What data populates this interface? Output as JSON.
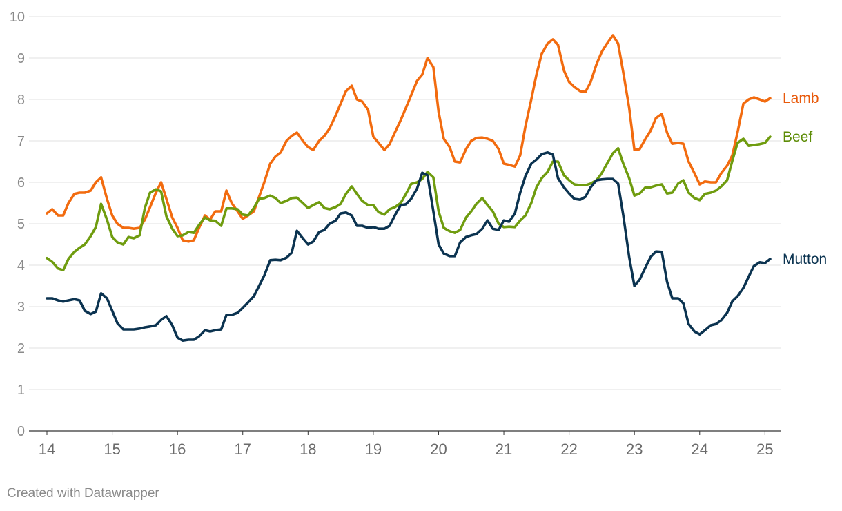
{
  "footer": "Created with Datawrapper",
  "chart_data": {
    "type": "line",
    "title": "",
    "xlabel": "",
    "ylabel": "",
    "xlim": [
      14,
      25.25
    ],
    "ylim": [
      0,
      10
    ],
    "grid": true,
    "x_ticks": [
      14,
      15,
      16,
      17,
      18,
      19,
      20,
      21,
      22,
      23,
      24,
      25
    ],
    "x_tick_labels": [
      "14",
      "15",
      "16",
      "17",
      "18",
      "19",
      "20",
      "21",
      "22",
      "23",
      "24",
      "25"
    ],
    "y_ticks": [
      0,
      1,
      2,
      3,
      4,
      5,
      6,
      7,
      8,
      9,
      10
    ],
    "y_tick_labels": [
      "0",
      "1",
      "2",
      "3",
      "4",
      "5",
      "6",
      "7",
      "8",
      "9",
      "10"
    ],
    "series": [
      {
        "name": "Lamb",
        "color": "#f26b0f",
        "label_color": "#e85a0c",
        "x": [
          14.0,
          14.08,
          14.17,
          14.25,
          14.33,
          14.42,
          14.5,
          14.58,
          14.67,
          14.75,
          14.83,
          14.92,
          15.0,
          15.08,
          15.17,
          15.25,
          15.33,
          15.42,
          15.5,
          15.58,
          15.67,
          15.75,
          15.83,
          15.92,
          16.0,
          16.08,
          16.17,
          16.25,
          16.33,
          16.42,
          16.5,
          16.58,
          16.67,
          16.75,
          16.83,
          16.92,
          17.0,
          17.08,
          17.17,
          17.25,
          17.33,
          17.42,
          17.5,
          17.58,
          17.67,
          17.75,
          17.83,
          17.92,
          18.0,
          18.08,
          18.17,
          18.25,
          18.33,
          18.42,
          18.5,
          18.58,
          18.67,
          18.75,
          18.83,
          18.92,
          19.0,
          19.08,
          19.17,
          19.25,
          19.33,
          19.42,
          19.5,
          19.58,
          19.67,
          19.75,
          19.83,
          19.92,
          20.0,
          20.08,
          20.17,
          20.25,
          20.33,
          20.42,
          20.5,
          20.58,
          20.67,
          20.75,
          20.83,
          20.92,
          21.0,
          21.08,
          21.17,
          21.25,
          21.33,
          21.42,
          21.5,
          21.58,
          21.67,
          21.75,
          21.83,
          21.92,
          22.0,
          22.08,
          22.17,
          22.25,
          22.33,
          22.42,
          22.5,
          22.58,
          22.67,
          22.75,
          22.83,
          22.92,
          23.0,
          23.08,
          23.17,
          23.25,
          23.33,
          23.42,
          23.5,
          23.58,
          23.67,
          23.75,
          23.83,
          23.92,
          24.0,
          24.08,
          24.17,
          24.25,
          24.33,
          24.42,
          24.5,
          24.58,
          24.67,
          24.75,
          24.83,
          24.92,
          25.0,
          25.08
        ],
        "values": [
          5.25,
          5.35,
          5.2,
          5.2,
          5.5,
          5.72,
          5.75,
          5.75,
          5.8,
          6.0,
          6.12,
          5.6,
          5.2,
          5.0,
          4.9,
          4.9,
          4.88,
          4.9,
          5.1,
          5.4,
          5.75,
          6.0,
          5.6,
          5.15,
          4.9,
          4.6,
          4.57,
          4.6,
          4.9,
          5.2,
          5.1,
          5.3,
          5.3,
          5.8,
          5.5,
          5.3,
          5.12,
          5.2,
          5.3,
          5.65,
          6.0,
          6.45,
          6.62,
          6.72,
          7.0,
          7.12,
          7.2,
          7.0,
          6.85,
          6.78,
          7.0,
          7.12,
          7.3,
          7.6,
          7.9,
          8.2,
          8.33,
          8.0,
          7.95,
          7.75,
          7.1,
          6.95,
          6.78,
          6.92,
          7.2,
          7.5,
          7.8,
          8.1,
          8.45,
          8.6,
          9.0,
          8.78,
          7.7,
          7.05,
          6.85,
          6.5,
          6.48,
          6.8,
          7.0,
          7.07,
          7.08,
          7.05,
          7.0,
          6.8,
          6.45,
          6.42,
          6.38,
          6.65,
          7.35,
          8.0,
          8.6,
          9.1,
          9.35,
          9.45,
          9.32,
          8.7,
          8.42,
          8.3,
          8.2,
          8.18,
          8.42,
          8.85,
          9.15,
          9.35,
          9.55,
          9.35,
          8.65,
          7.8,
          6.78,
          6.8,
          7.05,
          7.25,
          7.55,
          7.65,
          7.2,
          6.93,
          6.95,
          6.93,
          6.5,
          6.22,
          5.95,
          6.02,
          6.0,
          6.0,
          6.22,
          6.4,
          6.65,
          7.2,
          7.9,
          8.0,
          8.05,
          8.0,
          7.95,
          8.03
        ]
      },
      {
        "name": "Beef",
        "color": "#6f9c0f",
        "label_color": "#5d8c06",
        "x": [
          14.0,
          14.08,
          14.17,
          14.25,
          14.33,
          14.42,
          14.5,
          14.58,
          14.67,
          14.75,
          14.83,
          14.92,
          15.0,
          15.08,
          15.17,
          15.25,
          15.33,
          15.42,
          15.5,
          15.58,
          15.67,
          15.75,
          15.83,
          15.92,
          16.0,
          16.08,
          16.17,
          16.25,
          16.33,
          16.42,
          16.5,
          16.58,
          16.67,
          16.75,
          16.83,
          16.92,
          17.0,
          17.08,
          17.17,
          17.25,
          17.33,
          17.42,
          17.5,
          17.58,
          17.67,
          17.75,
          17.83,
          17.92,
          18.0,
          18.08,
          18.17,
          18.25,
          18.33,
          18.42,
          18.5,
          18.58,
          18.67,
          18.75,
          18.83,
          18.92,
          19.0,
          19.08,
          19.17,
          19.25,
          19.33,
          19.42,
          19.5,
          19.58,
          19.67,
          19.75,
          19.83,
          19.92,
          20.0,
          20.08,
          20.17,
          20.25,
          20.33,
          20.42,
          20.5,
          20.58,
          20.67,
          20.75,
          20.83,
          20.92,
          21.0,
          21.08,
          21.17,
          21.25,
          21.33,
          21.42,
          21.5,
          21.58,
          21.67,
          21.75,
          21.83,
          21.92,
          22.0,
          22.08,
          22.17,
          22.25,
          22.33,
          22.42,
          22.5,
          22.58,
          22.67,
          22.75,
          22.83,
          22.92,
          23.0,
          23.08,
          23.17,
          23.25,
          23.33,
          23.42,
          23.5,
          23.58,
          23.67,
          23.75,
          23.83,
          23.92,
          24.0,
          24.08,
          24.17,
          24.25,
          24.33,
          24.42,
          24.5,
          24.58,
          24.67,
          24.75,
          24.83,
          24.92,
          25.0,
          25.08
        ],
        "values": [
          4.17,
          4.08,
          3.92,
          3.88,
          4.15,
          4.32,
          4.42,
          4.5,
          4.7,
          4.92,
          5.48,
          5.1,
          4.68,
          4.55,
          4.5,
          4.68,
          4.65,
          4.72,
          5.38,
          5.75,
          5.83,
          5.78,
          5.18,
          4.88,
          4.7,
          4.72,
          4.8,
          4.78,
          4.97,
          5.15,
          5.08,
          5.07,
          4.95,
          5.37,
          5.37,
          5.35,
          5.22,
          5.2,
          5.38,
          5.6,
          5.62,
          5.68,
          5.62,
          5.5,
          5.55,
          5.62,
          5.63,
          5.5,
          5.38,
          5.45,
          5.52,
          5.38,
          5.35,
          5.4,
          5.48,
          5.72,
          5.9,
          5.72,
          5.55,
          5.45,
          5.45,
          5.28,
          5.22,
          5.35,
          5.4,
          5.5,
          5.72,
          5.96,
          6.0,
          6.08,
          6.25,
          6.12,
          5.3,
          4.9,
          4.82,
          4.78,
          4.85,
          5.15,
          5.3,
          5.48,
          5.62,
          5.45,
          5.3,
          5.0,
          4.92,
          4.93,
          4.92,
          5.08,
          5.2,
          5.5,
          5.88,
          6.1,
          6.25,
          6.5,
          6.5,
          6.17,
          6.05,
          5.95,
          5.93,
          5.93,
          5.97,
          6.05,
          6.22,
          6.45,
          6.7,
          6.82,
          6.45,
          6.1,
          5.68,
          5.73,
          5.88,
          5.88,
          5.92,
          5.95,
          5.73,
          5.75,
          5.97,
          6.05,
          5.75,
          5.62,
          5.57,
          5.72,
          5.75,
          5.8,
          5.9,
          6.05,
          6.52,
          6.95,
          7.05,
          6.88,
          6.9,
          6.92,
          6.95,
          7.1
        ]
      },
      {
        "name": "Mutton",
        "color": "#0b3350",
        "label_color": "#0b3350",
        "x": [
          14.0,
          14.08,
          14.17,
          14.25,
          14.33,
          14.42,
          14.5,
          14.58,
          14.67,
          14.75,
          14.83,
          14.92,
          15.0,
          15.08,
          15.17,
          15.25,
          15.33,
          15.42,
          15.5,
          15.58,
          15.67,
          15.75,
          15.83,
          15.92,
          16.0,
          16.08,
          16.17,
          16.25,
          16.33,
          16.42,
          16.5,
          16.58,
          16.67,
          16.75,
          16.83,
          16.92,
          17.0,
          17.08,
          17.17,
          17.25,
          17.33,
          17.42,
          17.5,
          17.58,
          17.67,
          17.75,
          17.83,
          17.92,
          18.0,
          18.08,
          18.17,
          18.25,
          18.33,
          18.42,
          18.5,
          18.58,
          18.67,
          18.75,
          18.83,
          18.92,
          19.0,
          19.08,
          19.17,
          19.25,
          19.33,
          19.42,
          19.5,
          19.58,
          19.67,
          19.75,
          19.83,
          19.92,
          20.0,
          20.08,
          20.17,
          20.25,
          20.33,
          20.42,
          20.5,
          20.58,
          20.67,
          20.75,
          20.83,
          20.92,
          21.0,
          21.08,
          21.17,
          21.25,
          21.33,
          21.42,
          21.5,
          21.58,
          21.67,
          21.75,
          21.83,
          21.92,
          22.0,
          22.08,
          22.17,
          22.25,
          22.33,
          22.42,
          22.5,
          22.58,
          22.67,
          22.75,
          22.83,
          22.92,
          23.0,
          23.08,
          23.17,
          23.25,
          23.33,
          23.42,
          23.5,
          23.58,
          23.67,
          23.75,
          23.83,
          23.92,
          24.0,
          24.08,
          24.17,
          24.25,
          24.33,
          24.42,
          24.5,
          24.58,
          24.67,
          24.75,
          24.83,
          24.92,
          25.0,
          25.08
        ],
        "values": [
          3.2,
          3.2,
          3.15,
          3.12,
          3.15,
          3.18,
          3.15,
          2.9,
          2.82,
          2.88,
          3.32,
          3.2,
          2.9,
          2.6,
          2.45,
          2.45,
          2.45,
          2.47,
          2.5,
          2.52,
          2.55,
          2.68,
          2.77,
          2.55,
          2.25,
          2.18,
          2.2,
          2.2,
          2.28,
          2.43,
          2.4,
          2.43,
          2.45,
          2.8,
          2.8,
          2.85,
          2.97,
          3.1,
          3.25,
          3.5,
          3.75,
          4.12,
          4.13,
          4.12,
          4.18,
          4.3,
          4.83,
          4.65,
          4.5,
          4.57,
          4.8,
          4.85,
          5.0,
          5.07,
          5.25,
          5.27,
          5.2,
          4.95,
          4.95,
          4.9,
          4.92,
          4.88,
          4.88,
          4.95,
          5.2,
          5.45,
          5.47,
          5.6,
          5.85,
          6.23,
          6.17,
          5.3,
          4.5,
          4.28,
          4.22,
          4.22,
          4.55,
          4.68,
          4.72,
          4.75,
          4.88,
          5.08,
          4.88,
          4.85,
          5.08,
          5.05,
          5.25,
          5.75,
          6.15,
          6.45,
          6.55,
          6.68,
          6.72,
          6.67,
          6.1,
          5.88,
          5.73,
          5.6,
          5.58,
          5.65,
          5.88,
          6.05,
          6.07,
          6.08,
          6.08,
          5.97,
          5.2,
          4.2,
          3.5,
          3.65,
          3.95,
          4.2,
          4.33,
          4.32,
          3.6,
          3.2,
          3.2,
          3.08,
          2.58,
          2.4,
          2.33,
          2.43,
          2.55,
          2.58,
          2.67,
          2.85,
          3.13,
          3.25,
          3.45,
          3.72,
          3.98,
          4.07,
          4.05,
          4.15
        ]
      }
    ]
  }
}
